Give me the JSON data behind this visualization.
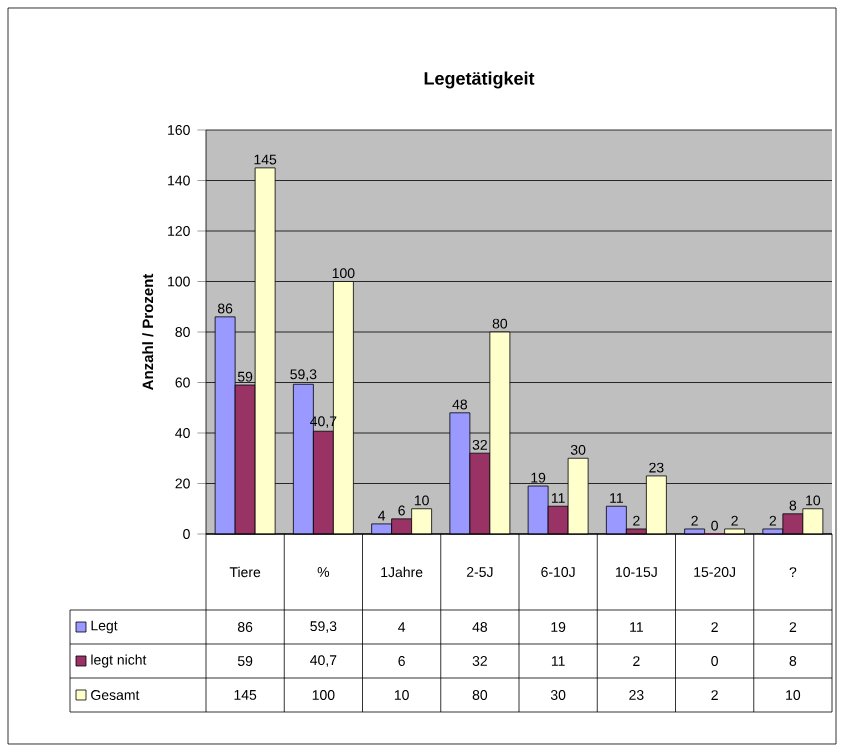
{
  "chart_data": {
    "type": "bar",
    "title": "Legetätigkeit",
    "ylabel": "Anzahl / Prozent",
    "categories": [
      "Tiere",
      "%",
      "1Jahre",
      "2-5J",
      "6-10J",
      "10-15J",
      "15-20J",
      "?"
    ],
    "series": [
      {
        "name": "Legt",
        "color": "#9999ff",
        "values": [
          86,
          59.3,
          4,
          48,
          19,
          11,
          2,
          2
        ],
        "value_labels": [
          "86",
          "59,3",
          "4",
          "48",
          "19",
          "11",
          "2",
          "2"
        ]
      },
      {
        "name": "legt nicht",
        "color": "#993366",
        "values": [
          59,
          40.7,
          6,
          32,
          11,
          2,
          0,
          8
        ],
        "value_labels": [
          "59",
          "40,7",
          "6",
          "32",
          "11",
          "2",
          "0",
          "8"
        ]
      },
      {
        "name": "Gesamt",
        "color": "#ffffcc",
        "values": [
          145,
          100,
          10,
          80,
          30,
          23,
          2,
          10
        ],
        "value_labels": [
          "145",
          "100",
          "10",
          "80",
          "30",
          "23",
          "2",
          "10"
        ]
      }
    ],
    "ylim": [
      0,
      160
    ],
    "yticks": [
      0,
      20,
      40,
      60,
      80,
      100,
      120,
      140,
      160
    ],
    "grid": "y",
    "legend": "bottom"
  }
}
